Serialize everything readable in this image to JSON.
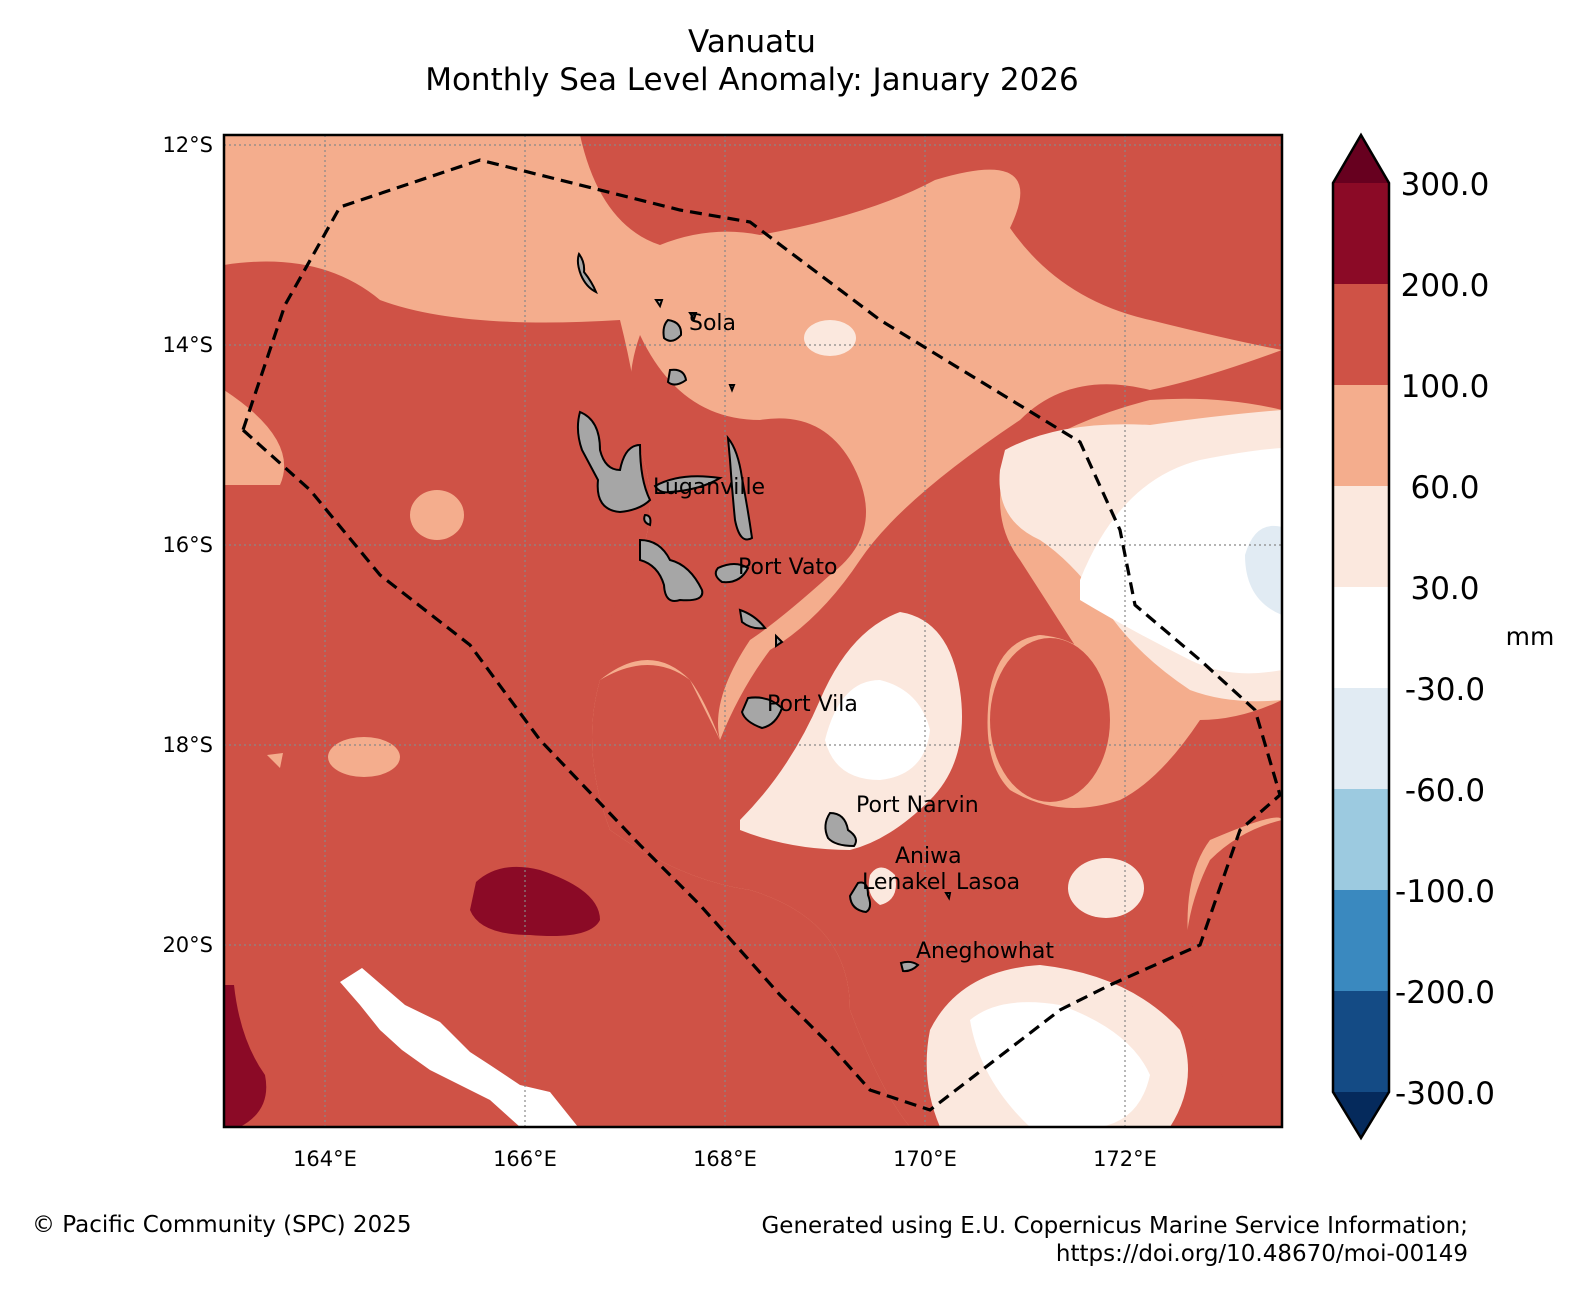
{
  "title": {
    "line1": "Vanuatu",
    "line2": "Monthly Sea Level Anomaly: January 2026"
  },
  "map": {
    "lat_labels": [
      "12°S",
      "14°S",
      "16°S",
      "18°S",
      "20°S"
    ],
    "lon_labels": [
      "164°E",
      "166°E",
      "168°E",
      "170°E",
      "172°E"
    ],
    "places": [
      "Sola",
      "Luganville",
      "Port Vato",
      "Port Vila",
      "Port Narvin",
      "Aniwa",
      "Lenakel",
      "Lasoa",
      "Aneghowhat"
    ],
    "boundary": "Exclusive Economic Zone (dashed)"
  },
  "colorbar": {
    "unit": "mm",
    "ticks": [
      "300.0",
      "200.0",
      "100.0",
      "60.0",
      "30.0",
      "-30.0",
      "-60.0",
      "-100.0",
      "-200.0",
      "-300.0"
    ],
    "colors": {
      "over": "#67001f",
      "200_300": "#8b0a26",
      "100_200": "#cf5246",
      "60_100": "#f4ad8d",
      "30_60": "#fbe8de",
      "m30_30": "#ffffff",
      "m60_m30": "#e1ebf3",
      "m100_m60": "#9ccae0",
      "m200_m100": "#3a89bf",
      "m300_m200": "#144b85",
      "under": "#052a5c"
    }
  },
  "land_color": "#a6a6a6",
  "footer": {
    "left": "© Pacific Community (SPC) 2025",
    "right_line1": "Generated using E.U. Copernicus Marine Service Information;",
    "right_line2": "https://doi.org/10.48670/moi-00149"
  }
}
